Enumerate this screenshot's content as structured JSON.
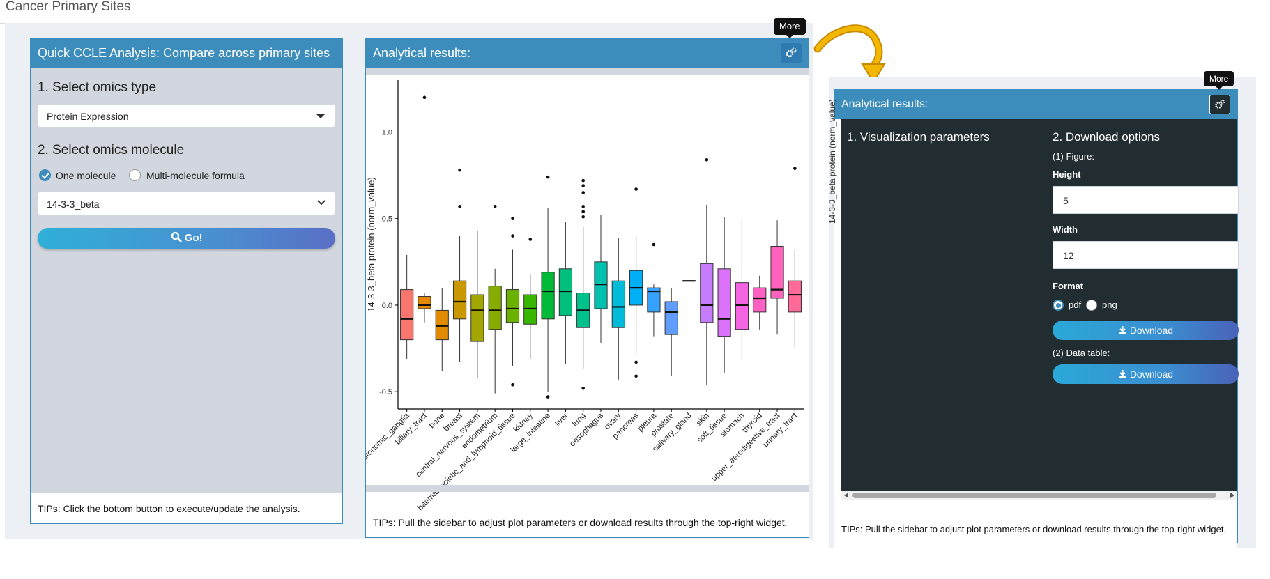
{
  "tab": {
    "label": "Cancer Primary Sites"
  },
  "sidebar": {
    "title": "Quick CCLE Analysis: Compare across primary sites",
    "step1": "1. Select omics type",
    "omics_type": "Protein Expression",
    "step2": "2. Select omics molecule",
    "radio_one": "One molecule",
    "radio_multi": "Multi-molecule formula",
    "molecule": "14-3-3_beta",
    "go_label": "Go!",
    "tips": "TIPs: Click the bottom button to execute/update the analysis."
  },
  "results": {
    "title": "Analytical results:",
    "tooltip": "More",
    "tips": "TIPs: Pull the sidebar to adjust plot parameters or download results through the top-right widget."
  },
  "panel2": {
    "title": "Analytical results:",
    "tooltip": "More",
    "vis_title": "1. Visualization parameters",
    "dl_title": "2. Download options",
    "figure_label": "(1) Figure:",
    "height_label": "Height",
    "height_value": "5",
    "width_label": "Width",
    "width_value": "12",
    "format_label": "Format",
    "fmt_pdf": "pdf",
    "fmt_png": "png",
    "download_label": "Download",
    "table_label": "(2) Data table:",
    "download2_label": "Download",
    "obscured_ylabel": "14-3-3_beta protein (norm_value)",
    "tips": "TIPs: Pull the sidebar to adjust plot parameters or download results through the top-right widget."
  },
  "colors": {
    "header": "#3c8dbc",
    "sidebar_bg": "#d2d6de",
    "dark_panel": "#222d32",
    "arrow": "#e6a100"
  },
  "chart_data": {
    "type": "box",
    "ylabel": "14-3-3_beta protein (norm_value)",
    "ylim": [
      -0.6,
      1.3
    ],
    "yticks": [
      "1.0",
      "0.5",
      "0.0",
      "-0.5"
    ],
    "categories": [
      "autonomic_ganglia",
      "biliary_tract",
      "bone",
      "breast",
      "central_nervous_system",
      "endometrium",
      "haematopoietic_and_lymphoid_tissue",
      "kidney",
      "large_intestine",
      "liver",
      "lung",
      "oesophagus",
      "ovary",
      "pancreas",
      "pleura",
      "prostate",
      "salivary_gland",
      "skin",
      "soft_tissue",
      "stomach",
      "thyroid",
      "upper_aerodigestive_tract",
      "urinary_tract"
    ],
    "category_labels": [
      "autonomic_ganglia",
      "biliary_tract",
      "bone",
      "breast",
      "central_nervous_system",
      "endometrium",
      "haematopoietic_and_lymphoid_tissue",
      "kidney",
      "large_intestine",
      "liver",
      "lung",
      "oesophagus",
      "ovary",
      "pancreas",
      "pleura",
      "prostate",
      "salivary_gland",
      "skin",
      "soft_tissue",
      "stomach",
      "thyroid",
      "upper_aerodigestive_tract",
      "urinary_tract"
    ],
    "colors": [
      "#f8766d",
      "#e58700",
      "#e08b00",
      "#c99800",
      "#a3a500",
      "#86ac00",
      "#6bb100",
      "#39b600",
      "#00ba38",
      "#00bf7d",
      "#00c08b",
      "#00c0af",
      "#00bcd8",
      "#00b0f6",
      "#35a2ff",
      "#619cff",
      "#8c8c8c",
      "#c77cff",
      "#dc71fa",
      "#f564e3",
      "#ff61c3",
      "#ff62bc",
      "#ff6a98"
    ],
    "boxes": [
      {
        "q1": -0.2,
        "med": -0.08,
        "q3": 0.09,
        "lo": -0.31,
        "hi": 0.29,
        "out": []
      },
      {
        "q1": -0.02,
        "med": 0.0,
        "q3": 0.05,
        "lo": -0.1,
        "hi": 0.07,
        "out": [
          1.2
        ]
      },
      {
        "q1": -0.2,
        "med": -0.12,
        "q3": -0.03,
        "lo": -0.38,
        "hi": 0.1,
        "out": []
      },
      {
        "q1": -0.08,
        "med": 0.02,
        "q3": 0.14,
        "lo": -0.33,
        "hi": 0.4,
        "out": [
          0.78,
          0.57
        ]
      },
      {
        "q1": -0.21,
        "med": -0.03,
        "q3": 0.06,
        "lo": -0.42,
        "hi": 0.43,
        "out": []
      },
      {
        "q1": -0.14,
        "med": -0.03,
        "q3": 0.11,
        "lo": -0.51,
        "hi": 0.21,
        "out": [
          0.57
        ]
      },
      {
        "q1": -0.1,
        "med": -0.02,
        "q3": 0.09,
        "lo": -0.35,
        "hi": 0.32,
        "out": [
          0.5,
          0.4,
          -0.46
        ]
      },
      {
        "q1": -0.11,
        "med": -0.02,
        "q3": 0.06,
        "lo": -0.31,
        "hi": 0.18,
        "out": [
          0.38
        ]
      },
      {
        "q1": -0.08,
        "med": 0.08,
        "q3": 0.19,
        "lo": -0.5,
        "hi": 0.56,
        "out": [
          0.74,
          -0.53
        ]
      },
      {
        "q1": -0.06,
        "med": 0.08,
        "q3": 0.21,
        "lo": -0.34,
        "hi": 0.48,
        "out": []
      },
      {
        "q1": -0.13,
        "med": -0.03,
        "q3": 0.07,
        "lo": -0.37,
        "hi": 0.45,
        "out": [
          0.72,
          0.69,
          0.65,
          0.57,
          0.54,
          0.51,
          -0.48
        ]
      },
      {
        "q1": -0.02,
        "med": 0.12,
        "q3": 0.25,
        "lo": -0.22,
        "hi": 0.52,
        "out": []
      },
      {
        "q1": -0.13,
        "med": -0.01,
        "q3": 0.14,
        "lo": -0.43,
        "hi": 0.39,
        "out": []
      },
      {
        "q1": 0.0,
        "med": 0.1,
        "q3": 0.2,
        "lo": -0.28,
        "hi": 0.4,
        "out": [
          0.67,
          -0.33,
          -0.41
        ]
      },
      {
        "q1": -0.04,
        "med": 0.08,
        "q3": 0.1,
        "lo": -0.18,
        "hi": 0.12,
        "out": [
          0.35
        ]
      },
      {
        "q1": -0.17,
        "med": -0.04,
        "q3": 0.02,
        "lo": -0.41,
        "hi": 0.1,
        "out": []
      },
      {
        "q1": 0.14,
        "med": 0.14,
        "q3": 0.14,
        "lo": 0.14,
        "hi": 0.14,
        "out": []
      },
      {
        "q1": -0.1,
        "med": 0.0,
        "q3": 0.24,
        "lo": -0.46,
        "hi": 0.58,
        "out": [
          0.84
        ]
      },
      {
        "q1": -0.18,
        "med": -0.08,
        "q3": 0.21,
        "lo": -0.39,
        "hi": 0.51,
        "out": []
      },
      {
        "q1": -0.14,
        "med": 0.0,
        "q3": 0.13,
        "lo": -0.32,
        "hi": 0.5,
        "out": []
      },
      {
        "q1": -0.04,
        "med": 0.04,
        "q3": 0.1,
        "lo": -0.14,
        "hi": 0.17,
        "out": []
      },
      {
        "q1": 0.04,
        "med": 0.09,
        "q3": 0.34,
        "lo": -0.17,
        "hi": 0.49,
        "out": []
      },
      {
        "q1": -0.04,
        "med": 0.06,
        "q3": 0.14,
        "lo": -0.24,
        "hi": 0.32,
        "out": [
          0.79
        ]
      }
    ]
  }
}
